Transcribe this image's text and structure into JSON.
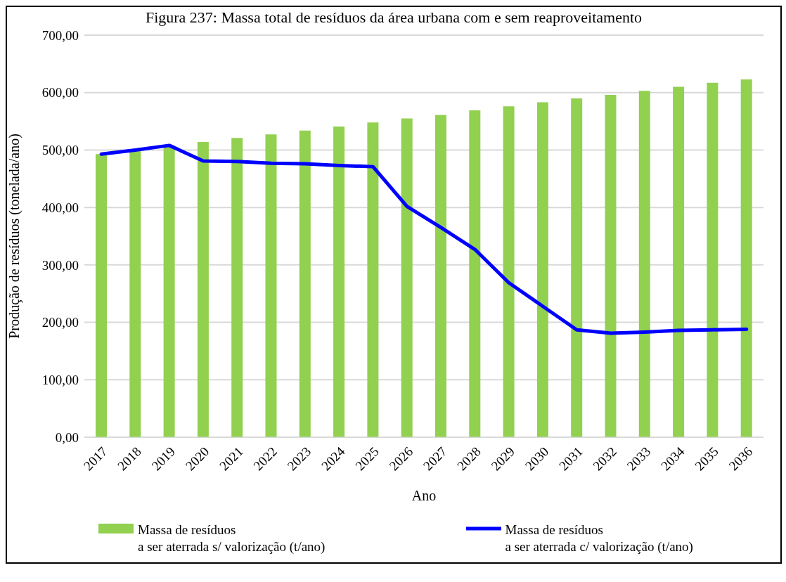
{
  "chart_data": {
    "type": "bar",
    "title": "Figura 237: Massa total de resíduos da área urbana com e sem reaproveitamento",
    "xlabel": "Ano",
    "ylabel": "Produção de resíduos (tonelada/ano)",
    "categories": [
      "2017",
      "2018",
      "2019",
      "2020",
      "2021",
      "2022",
      "2023",
      "2024",
      "2025",
      "2026",
      "2027",
      "2028",
      "2029",
      "2030",
      "2031",
      "2032",
      "2033",
      "2034",
      "2035",
      "2036"
    ],
    "series": [
      {
        "name": "Massa de resíduos\na ser aterrada s/ valorização (t/ano)",
        "color": "#92d050",
        "values": [
          493,
          500,
          507,
          514,
          521,
          527,
          534,
          541,
          548,
          555,
          561,
          569,
          576,
          583,
          590,
          596,
          603,
          610,
          617,
          623
        ]
      },
      {
        "name": "Massa de resíduos\na ser aterrada c/ valorização (t/ano)",
        "type": "line",
        "color": "#0000ff",
        "values": [
          493,
          500,
          508,
          481,
          480,
          477,
          476,
          473,
          471,
          402,
          365,
          327,
          269,
          228,
          187,
          181,
          183,
          186,
          187,
          188
        ]
      }
    ],
    "ylim": [
      0,
      700
    ],
    "yticks": [
      {
        "value": 0,
        "label": "0,00"
      },
      {
        "value": 100,
        "label": "100,00"
      },
      {
        "value": 200,
        "label": "200,00"
      },
      {
        "value": 300,
        "label": "300,00"
      },
      {
        "value": 400,
        "label": "400,00"
      },
      {
        "value": 500,
        "label": "500,00"
      },
      {
        "value": 600,
        "label": "600,00"
      },
      {
        "value": 700,
        "label": "700,00"
      }
    ],
    "grid": "y",
    "legend": "bottom",
    "marker": "none",
    "line_style": "solid"
  }
}
